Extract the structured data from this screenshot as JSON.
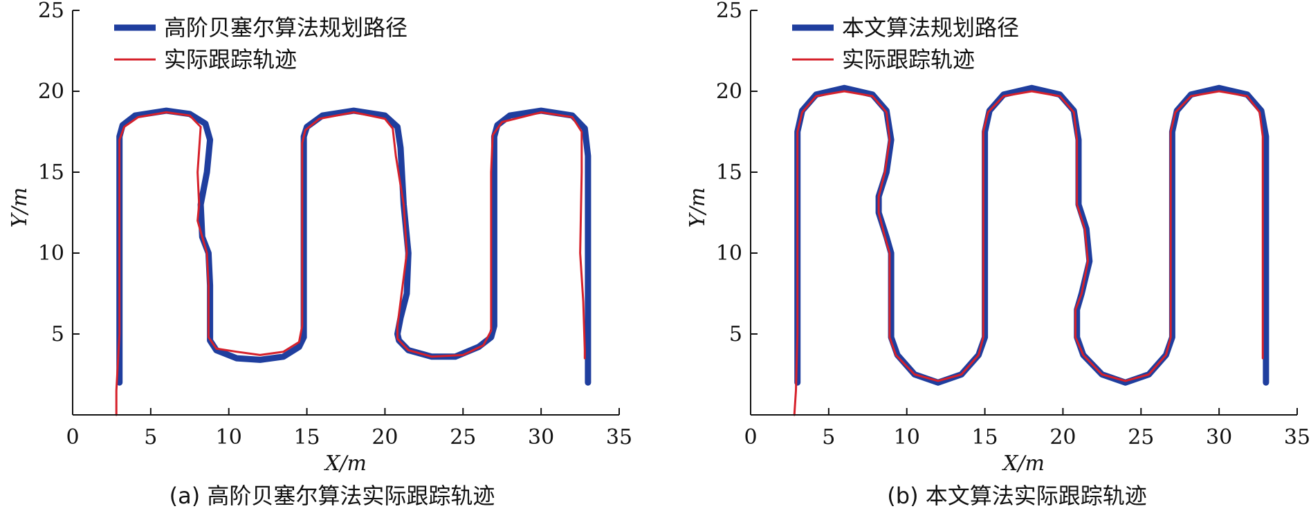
{
  "chart_data": [
    {
      "type": "line",
      "panel_caption": "(a) 高阶贝塞尔算法实际跟踪轨迹",
      "xlabel": "X/m",
      "ylabel": "Y/m",
      "xlim": [
        0,
        35
      ],
      "ylim": [
        0,
        25
      ],
      "xticks": [
        0,
        5,
        10,
        15,
        20,
        25,
        30,
        35
      ],
      "yticks": [
        5,
        10,
        15,
        20,
        25
      ],
      "legend_position": "top-left",
      "grid": false,
      "series": [
        {
          "name": "高阶贝塞尔算法规划路径",
          "color": "#1f3e9e",
          "x": [
            3.0,
            3.0,
            3.0,
            3.2,
            4.0,
            6.0,
            7.5,
            8.5,
            8.8,
            8.6,
            8.2,
            8.3,
            8.7,
            8.8,
            8.8,
            8.8,
            9.2,
            10.5,
            12.0,
            13.5,
            14.5,
            14.8,
            14.8,
            14.8,
            15.0,
            16.0,
            18.0,
            20.0,
            20.8,
            21.0,
            21.2,
            21.5,
            21.4,
            21.0,
            20.8,
            20.9,
            21.5,
            23.0,
            24.5,
            26.0,
            26.8,
            27.0,
            27.0,
            27.0,
            27.2,
            28.0,
            30.0,
            32.0,
            32.8,
            33.0,
            33.0,
            33.0
          ],
          "y": [
            2.0,
            10.0,
            17.2,
            17.9,
            18.5,
            18.8,
            18.6,
            18.0,
            17.0,
            15.0,
            13.0,
            11.0,
            10.0,
            8.0,
            5.0,
            4.6,
            4.0,
            3.5,
            3.4,
            3.6,
            4.2,
            4.8,
            6.0,
            17.2,
            17.8,
            18.5,
            18.8,
            18.5,
            17.8,
            16.5,
            13.0,
            10.0,
            7.5,
            6.0,
            5.0,
            4.6,
            4.0,
            3.6,
            3.6,
            4.2,
            4.8,
            5.5,
            10.0,
            17.2,
            17.9,
            18.5,
            18.8,
            18.5,
            17.7,
            16.0,
            10.0,
            2.0
          ]
        },
        {
          "name": "实际跟踪轨迹",
          "color": "#d6212b",
          "x": [
            2.8,
            2.8,
            3.0,
            3.0,
            3.3,
            4.2,
            6.0,
            7.5,
            8.2,
            8.0,
            8.1,
            8.0,
            8.3,
            8.6,
            8.7,
            8.7,
            9.2,
            10.5,
            12.0,
            13.5,
            14.5,
            14.7,
            14.7,
            14.9,
            15.8,
            18.0,
            20.0,
            20.5,
            20.7,
            21.2,
            21.4,
            21.0,
            20.8,
            20.8,
            21.5,
            23.0,
            25.0,
            26.3,
            26.8,
            26.8,
            26.9,
            27.5,
            30.0,
            32.0,
            32.6,
            32.6,
            32.5,
            32.7,
            32.8,
            32.8
          ],
          "y": [
            0.0,
            1.5,
            5.0,
            17.0,
            17.8,
            18.4,
            18.7,
            18.5,
            17.8,
            15.0,
            13.0,
            12.0,
            11.0,
            10.0,
            8.0,
            4.8,
            4.1,
            3.9,
            3.7,
            3.9,
            4.5,
            5.5,
            16.8,
            17.6,
            18.3,
            18.7,
            18.3,
            17.7,
            16.0,
            13.0,
            10.0,
            7.0,
            5.5,
            4.7,
            4.0,
            3.6,
            3.7,
            4.3,
            5.2,
            15.0,
            17.3,
            18.1,
            18.7,
            18.4,
            17.5,
            15.0,
            10.0,
            7.0,
            4.0,
            3.5
          ]
        }
      ]
    },
    {
      "type": "line",
      "panel_caption": "(b) 本文算法实际跟踪轨迹",
      "xlabel": "X/m",
      "ylabel": "Y/m",
      "xlim": [
        0,
        35
      ],
      "ylim": [
        0,
        25
      ],
      "xticks": [
        0,
        5,
        10,
        15,
        20,
        25,
        30,
        35
      ],
      "yticks": [
        5,
        10,
        15,
        20,
        25
      ],
      "legend_position": "top-left",
      "grid": false,
      "series": [
        {
          "name": "本文算法规划路径",
          "color": "#1f3e9e",
          "x": [
            3.0,
            3.0,
            3.0,
            3.3,
            4.2,
            6.0,
            7.8,
            8.7,
            9.0,
            8.7,
            8.2,
            8.2,
            8.7,
            9.0,
            9.0,
            9.0,
            9.4,
            10.5,
            12.0,
            13.5,
            14.6,
            15.0,
            15.0,
            15.0,
            15.3,
            16.2,
            18.0,
            19.8,
            20.7,
            21.0,
            21.0,
            21.5,
            21.7,
            21.2,
            20.9,
            20.9,
            21.3,
            22.5,
            24.0,
            25.5,
            26.6,
            27.0,
            27.0,
            27.0,
            27.3,
            28.2,
            30.0,
            31.8,
            32.7,
            33.0,
            33.0,
            33.0
          ],
          "y": [
            2.0,
            10.0,
            17.5,
            18.8,
            19.8,
            20.2,
            19.8,
            18.8,
            17.0,
            15.0,
            13.5,
            12.5,
            11.0,
            10.0,
            8.0,
            4.8,
            3.7,
            2.5,
            2.0,
            2.5,
            3.7,
            4.8,
            10.0,
            17.5,
            18.8,
            19.8,
            20.2,
            19.8,
            18.8,
            17.0,
            13.0,
            11.5,
            9.5,
            7.5,
            6.5,
            4.8,
            3.7,
            2.5,
            2.0,
            2.5,
            3.7,
            4.8,
            10.0,
            17.5,
            18.8,
            19.8,
            20.2,
            19.8,
            18.8,
            17.2,
            10.0,
            2.0
          ]
        },
        {
          "name": "实际跟踪轨迹",
          "color": "#d6212b",
          "x": [
            2.8,
            2.9,
            3.0,
            3.0,
            3.3,
            4.2,
            6.0,
            7.8,
            8.7,
            8.9,
            8.6,
            8.2,
            8.2,
            8.6,
            8.9,
            8.9,
            9.3,
            10.5,
            12.0,
            13.5,
            14.6,
            14.9,
            14.9,
            15.2,
            16.2,
            18.0,
            19.8,
            20.7,
            20.9,
            20.9,
            21.4,
            21.6,
            21.2,
            20.8,
            20.8,
            21.3,
            22.5,
            24.0,
            25.5,
            26.6,
            26.9,
            26.9,
            27.2,
            28.2,
            30.0,
            31.8,
            32.6,
            32.8,
            32.8
          ],
          "y": [
            0.0,
            1.5,
            5.0,
            17.5,
            18.7,
            19.7,
            20.0,
            19.7,
            18.7,
            17.0,
            15.0,
            13.5,
            12.5,
            11.0,
            10.0,
            4.8,
            3.7,
            2.5,
            2.1,
            2.5,
            3.7,
            4.8,
            17.5,
            18.7,
            19.7,
            20.0,
            19.7,
            18.7,
            17.0,
            13.0,
            11.5,
            9.5,
            7.5,
            6.5,
            4.8,
            3.7,
            2.5,
            2.1,
            2.5,
            3.7,
            4.8,
            17.5,
            18.7,
            19.7,
            20.0,
            19.7,
            18.7,
            17.2,
            3.5
          ]
        }
      ]
    }
  ]
}
